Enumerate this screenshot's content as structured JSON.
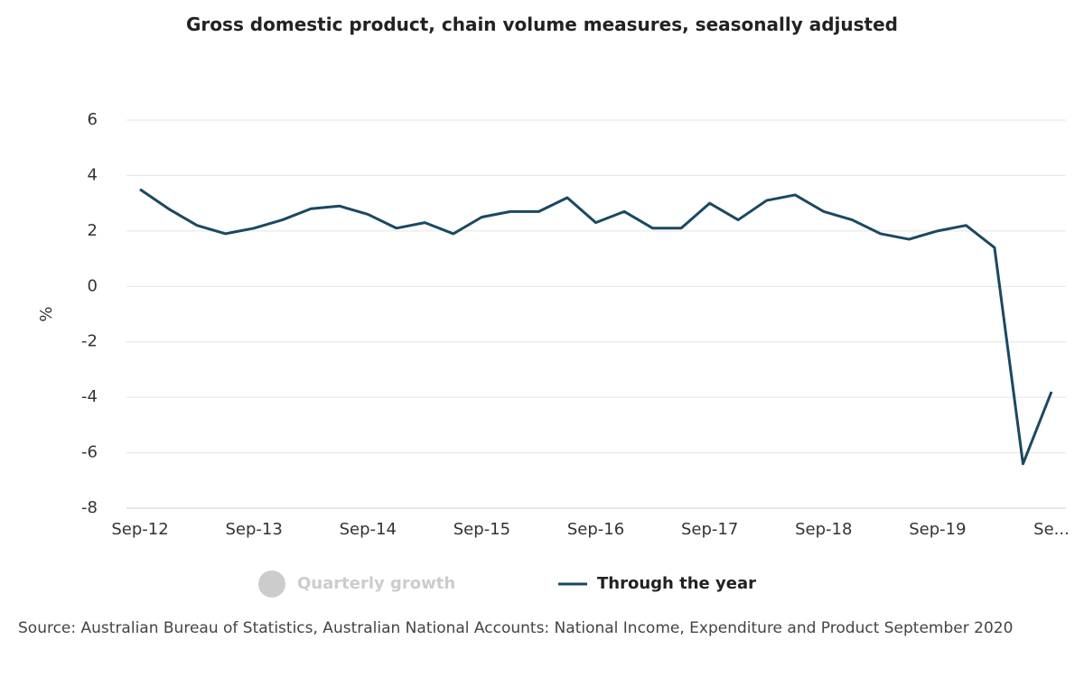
{
  "chart_data": {
    "type": "line",
    "title": "Gross domestic product, chain volume measures, seasonally adjusted",
    "y_label": "%",
    "categories": [
      "Sep-12",
      null,
      null,
      null,
      "Sep-13",
      null,
      null,
      null,
      "Sep-14",
      null,
      null,
      null,
      "Sep-15",
      null,
      null,
      null,
      "Sep-16",
      null,
      null,
      null,
      "Sep-17",
      null,
      null,
      null,
      "Sep-18",
      null,
      null,
      null,
      "Sep-19",
      null,
      null,
      null,
      "Se..."
    ],
    "series": [
      {
        "name": "Through the year",
        "color": "#1a4862",
        "values": [
          3.5,
          2.8,
          2.2,
          1.9,
          2.1,
          2.4,
          2.8,
          2.9,
          2.6,
          2.1,
          2.3,
          1.9,
          2.5,
          2.7,
          2.7,
          3.2,
          2.3,
          2.7,
          2.1,
          2.1,
          3.0,
          2.4,
          3.1,
          3.3,
          2.7,
          2.4,
          1.9,
          1.7,
          2.0,
          2.2,
          1.4,
          -6.4,
          -3.8
        ]
      }
    ],
    "hidden_series": [
      {
        "name": "Quarterly growth",
        "color": "#cccccc"
      }
    ],
    "ylim": [
      -8,
      6
    ],
    "yticks": [
      6,
      4,
      2,
      0,
      -2,
      -4,
      -6,
      -8
    ],
    "grid": true,
    "legend": "bottom",
    "source": "Source: Australian Bureau of Statistics, Australian National Accounts: National Income, Expenditure and Product September 2020"
  }
}
